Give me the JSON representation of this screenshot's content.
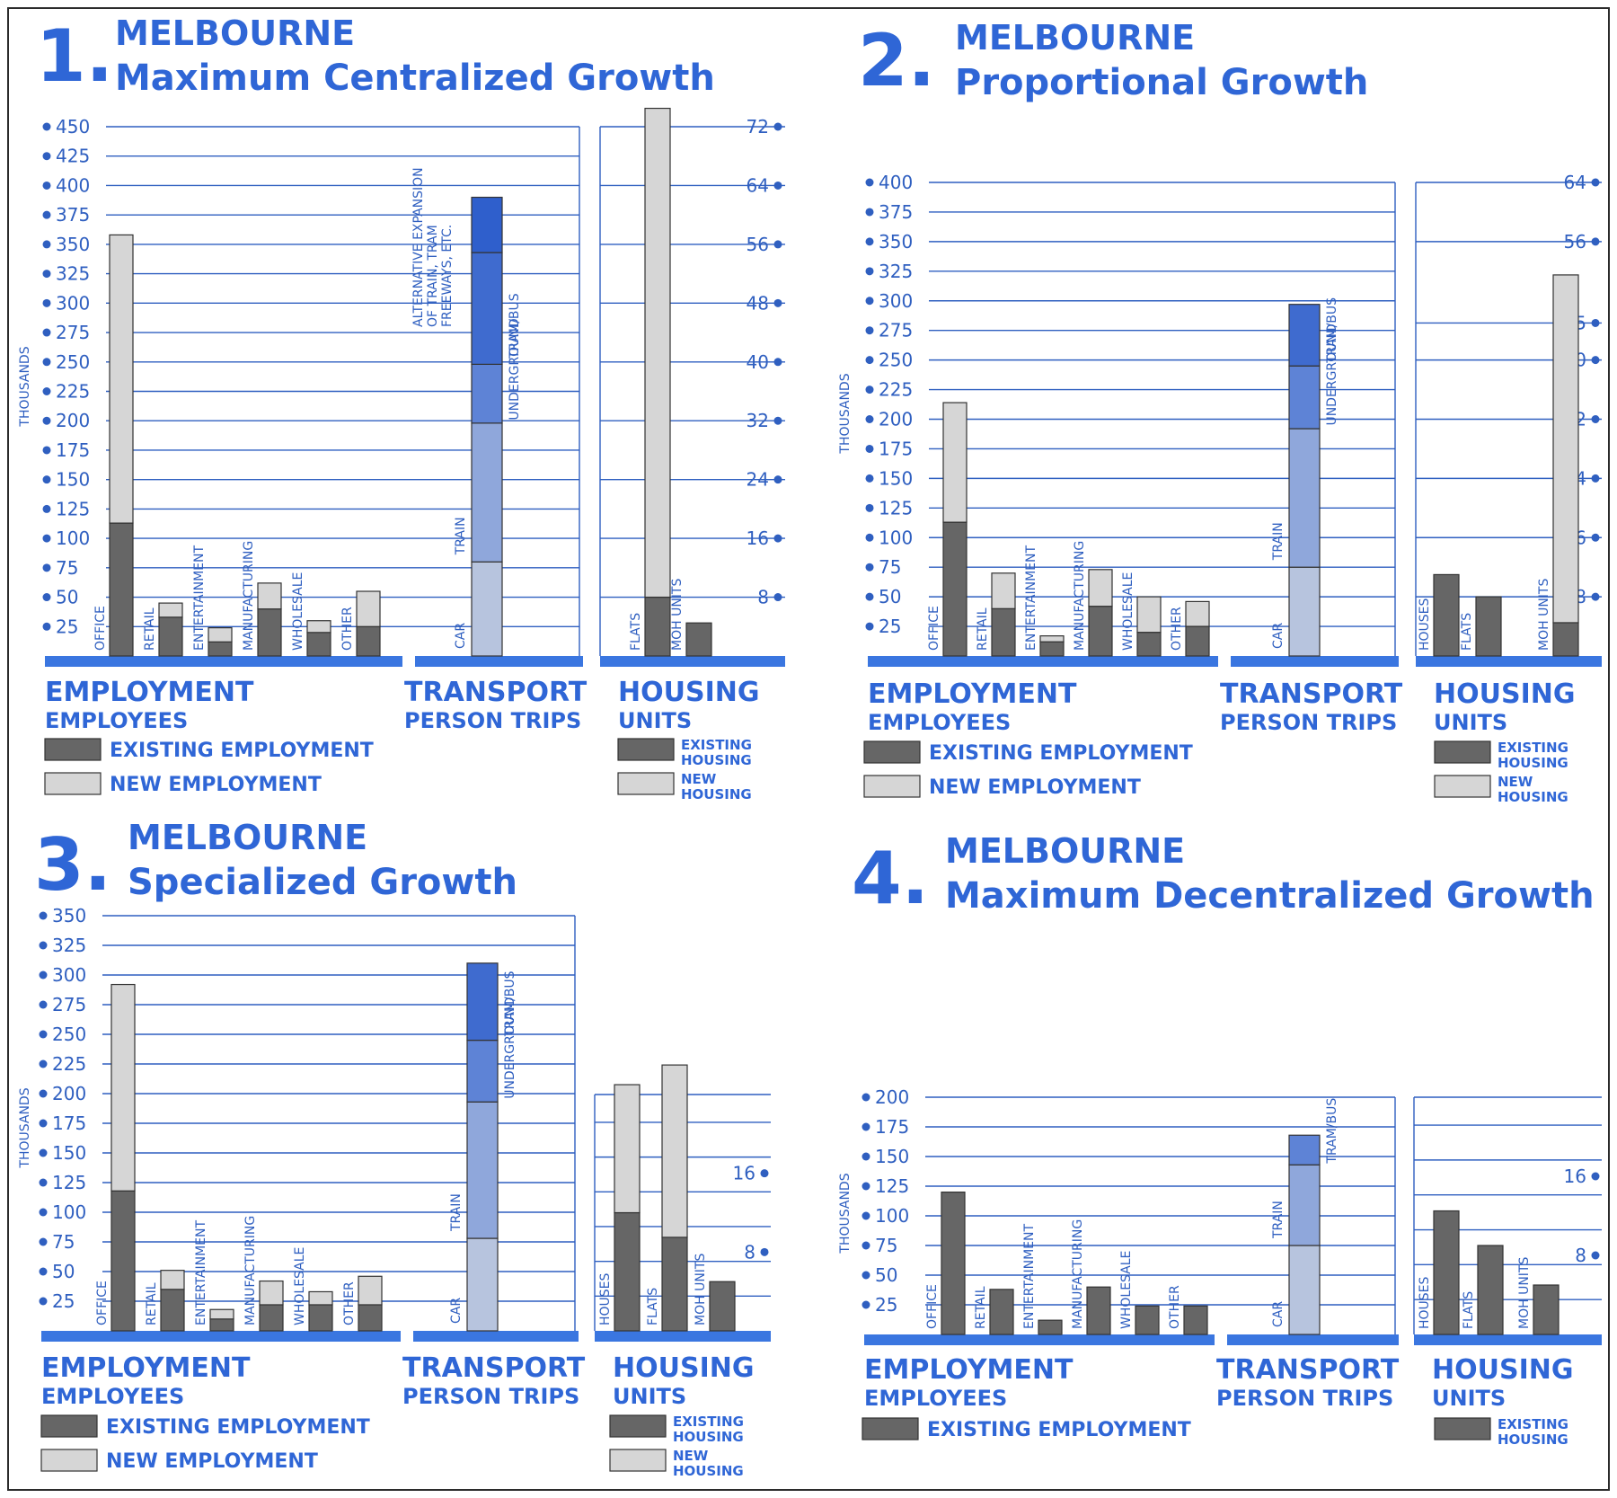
{
  "colors": {
    "accent": "#2f66d6",
    "grid": "#2f5fc0",
    "baseline": "#3a76e0",
    "existing": "#666666",
    "new": "#d6d6d6",
    "transport_car": "#b7c4de",
    "transport_train": "#8fa7db",
    "transport_underground": "#5e83d6",
    "transport_trambus": "#3f6bcf",
    "transport_alt": "#2f5fcc"
  },
  "legend_labels": {
    "existing_employment": "EXISTING EMPLOYMENT",
    "new_employment": "NEW EMPLOYMENT",
    "existing_housing": [
      "EXISTING",
      "HOUSING"
    ],
    "new_housing": [
      "NEW",
      "HOUSING"
    ]
  },
  "chart_data": [
    {
      "id": 1,
      "number": "1.",
      "title": "MELBOURNE",
      "subtitle": "Maximum Centralized Growth",
      "type": "bar",
      "ylabel": "THOUSANDS",
      "employment": {
        "group_title": "EMPLOYMENT",
        "group_subtitle": "EMPLOYEES",
        "ylim": [
          0,
          450
        ],
        "ticks": [
          25,
          50,
          75,
          100,
          125,
          150,
          175,
          200,
          225,
          250,
          275,
          300,
          325,
          350,
          375,
          400,
          425,
          450
        ],
        "categories": [
          "OFFICE",
          "RETAIL",
          "ENTERTAINMENT",
          "MANUFACTURING",
          "WHOLESALE",
          "OTHER"
        ],
        "series": [
          {
            "name": "EXISTING EMPLOYMENT",
            "values": [
              113,
              33,
              12,
              40,
              20,
              25
            ]
          },
          {
            "name": "NEW EMPLOYMENT",
            "values": [
              245,
              12,
              12,
              22,
              10,
              30
            ]
          }
        ]
      },
      "transport": {
        "group_title": "TRANSPORT",
        "group_subtitle": "PERSON TRIPS",
        "segments": [
          {
            "label": "CAR",
            "value": 80
          },
          {
            "label": "TRAIN",
            "value": 118
          },
          {
            "label": "UNDERGROUND",
            "value": 50
          },
          {
            "label": "TRAM/BUS",
            "value": 95
          },
          {
            "label": "",
            "value": 47
          }
        ],
        "annotation": [
          "ALTERNATIVE EXPANSION",
          "OF TRAIN, TRAM",
          "FREEWAYS, ETC."
        ]
      },
      "housing": {
        "group_title": "HOUSING",
        "group_subtitle": "UNITS",
        "ylim": [
          0,
          72
        ],
        "ticks": [
          8,
          16,
          24,
          32,
          40,
          48,
          56,
          64,
          72
        ],
        "categories": [
          "FLATS",
          "MOH UNITS"
        ],
        "series": [
          {
            "name": "EXISTING HOUSING",
            "values": [
              8,
              4.5
            ]
          },
          {
            "name": "NEW HOUSING",
            "values": [
              66.5,
              0
            ]
          }
        ]
      },
      "legend": [
        "existing_employment",
        "new_employment"
      ],
      "housing_legend": [
        "existing_housing",
        "new_housing"
      ]
    },
    {
      "id": 2,
      "number": "2.",
      "title": "MELBOURNE",
      "subtitle": "Proportional Growth",
      "type": "bar",
      "ylabel": "THOUSANDS",
      "employment": {
        "group_title": "EMPLOYMENT",
        "group_subtitle": "EMPLOYEES",
        "ylim": [
          0,
          400
        ],
        "ticks": [
          25,
          50,
          75,
          100,
          125,
          150,
          175,
          200,
          225,
          250,
          275,
          300,
          325,
          350,
          375,
          400
        ],
        "categories": [
          "OFFICE",
          "RETAIL",
          "ENTERTAINMENT",
          "MANUFACTURING",
          "WHOLESALE",
          "OTHER"
        ],
        "series": [
          {
            "name": "EXISTING EMPLOYMENT",
            "values": [
              113,
              40,
              12,
              42,
              20,
              25
            ]
          },
          {
            "name": "NEW EMPLOYMENT",
            "values": [
              101,
              30,
              5,
              31,
              30,
              21
            ]
          }
        ]
      },
      "transport": {
        "group_title": "TRANSPORT",
        "group_subtitle": "PERSON TRIPS",
        "segments": [
          {
            "label": "CAR",
            "value": 75
          },
          {
            "label": "TRAIN",
            "value": 117
          },
          {
            "label": "UNDERGROUND",
            "value": 53
          },
          {
            "label": "TRAM/BUS",
            "value": 52
          }
        ]
      },
      "housing": {
        "group_title": "HOUSING",
        "group_subtitle": "UNITS",
        "ylim": [
          0,
          64
        ],
        "ticks": [
          8,
          16,
          24,
          32,
          40,
          45,
          56,
          64
        ],
        "categories": [
          "HOUSES",
          "FLATS",
          "MOH UNITS"
        ],
        "series": [
          {
            "name": "EXISTING HOUSING",
            "values": [
              11,
              8,
              4.5
            ]
          },
          {
            "name": "NEW HOUSING",
            "values": [
              0,
              0,
              47
            ]
          }
        ]
      },
      "legend": [
        "existing_employment",
        "new_employment"
      ],
      "housing_legend": [
        "existing_housing",
        "new_housing"
      ]
    },
    {
      "id": 3,
      "number": "3.",
      "title": "MELBOURNE",
      "subtitle": "Specialized Growth",
      "type": "bar",
      "ylabel": "THOUSANDS",
      "employment": {
        "group_title": "EMPLOYMENT",
        "group_subtitle": "EMPLOYEES",
        "ylim": [
          0,
          350
        ],
        "ticks": [
          25,
          50,
          75,
          100,
          125,
          150,
          175,
          200,
          225,
          250,
          275,
          300,
          325,
          350
        ],
        "categories": [
          "OFFICE",
          "RETAIL",
          "ENTERTAINMENT",
          "MANUFACTURING",
          "WHOLESALE",
          "OTHER"
        ],
        "series": [
          {
            "name": "EXISTING EMPLOYMENT",
            "values": [
              118,
              35,
              10,
              22,
              22,
              22
            ]
          },
          {
            "name": "NEW EMPLOYMENT",
            "values": [
              174,
              16,
              8,
              20,
              11,
              24
            ]
          }
        ]
      },
      "transport": {
        "group_title": "TRANSPORT",
        "group_subtitle": "PERSON TRIPS",
        "segments": [
          {
            "label": "CAR",
            "value": 78
          },
          {
            "label": "TRAIN",
            "value": 115
          },
          {
            "label": "UNDERGROUND",
            "value": 52
          },
          {
            "label": "TRAM/BUS",
            "value": 65
          }
        ]
      },
      "housing": {
        "group_title": "HOUSING",
        "group_subtitle": "UNITS",
        "ylim": [
          0,
          24
        ],
        "ticks": [
          8,
          16
        ],
        "categories": [
          "HOUSES",
          "FLATS",
          "MOH UNITS"
        ],
        "series": [
          {
            "name": "EXISTING HOUSING",
            "values": [
              12,
              9.5,
              5
            ]
          },
          {
            "name": "NEW HOUSING",
            "values": [
              13,
              17.5,
              0
            ]
          }
        ]
      },
      "legend": [
        "existing_employment",
        "new_employment"
      ],
      "housing_legend": [
        "existing_housing",
        "new_housing"
      ]
    },
    {
      "id": 4,
      "number": "4.",
      "title": "MELBOURNE",
      "subtitle": "Maximum Decentralized Growth",
      "type": "bar",
      "ylabel": "THOUSANDS",
      "employment": {
        "group_title": "EMPLOYMENT",
        "group_subtitle": "EMPLOYEES",
        "ylim": [
          0,
          200
        ],
        "ticks": [
          25,
          50,
          75,
          100,
          125,
          150,
          175,
          200
        ],
        "categories": [
          "OFFICE",
          "RETAIL",
          "ENTERTAINMENT",
          "MANUFACTURING",
          "WHOLESALE",
          "OTHER"
        ],
        "series": [
          {
            "name": "EXISTING EMPLOYMENT",
            "values": [
              120,
              38,
              12,
              40,
              24,
              24
            ]
          }
        ]
      },
      "transport": {
        "group_title": "TRANSPORT",
        "group_subtitle": "PERSON TRIPS",
        "segments": [
          {
            "label": "CAR",
            "value": 75
          },
          {
            "label": "TRAIN",
            "value": 68
          },
          {
            "label": "TRAM/BUS",
            "value": 25
          }
        ]
      },
      "housing": {
        "group_title": "HOUSING",
        "group_subtitle": "UNITS",
        "ylim": [
          0,
          24
        ],
        "ticks": [
          8,
          16
        ],
        "categories": [
          "HOUSES",
          "FLATS",
          "MOH UNITS"
        ],
        "series": [
          {
            "name": "EXISTING HOUSING",
            "values": [
              12.5,
              9,
              5
            ]
          }
        ]
      },
      "legend": [
        "existing_employment"
      ],
      "housing_legend": [
        "existing_housing"
      ]
    }
  ]
}
